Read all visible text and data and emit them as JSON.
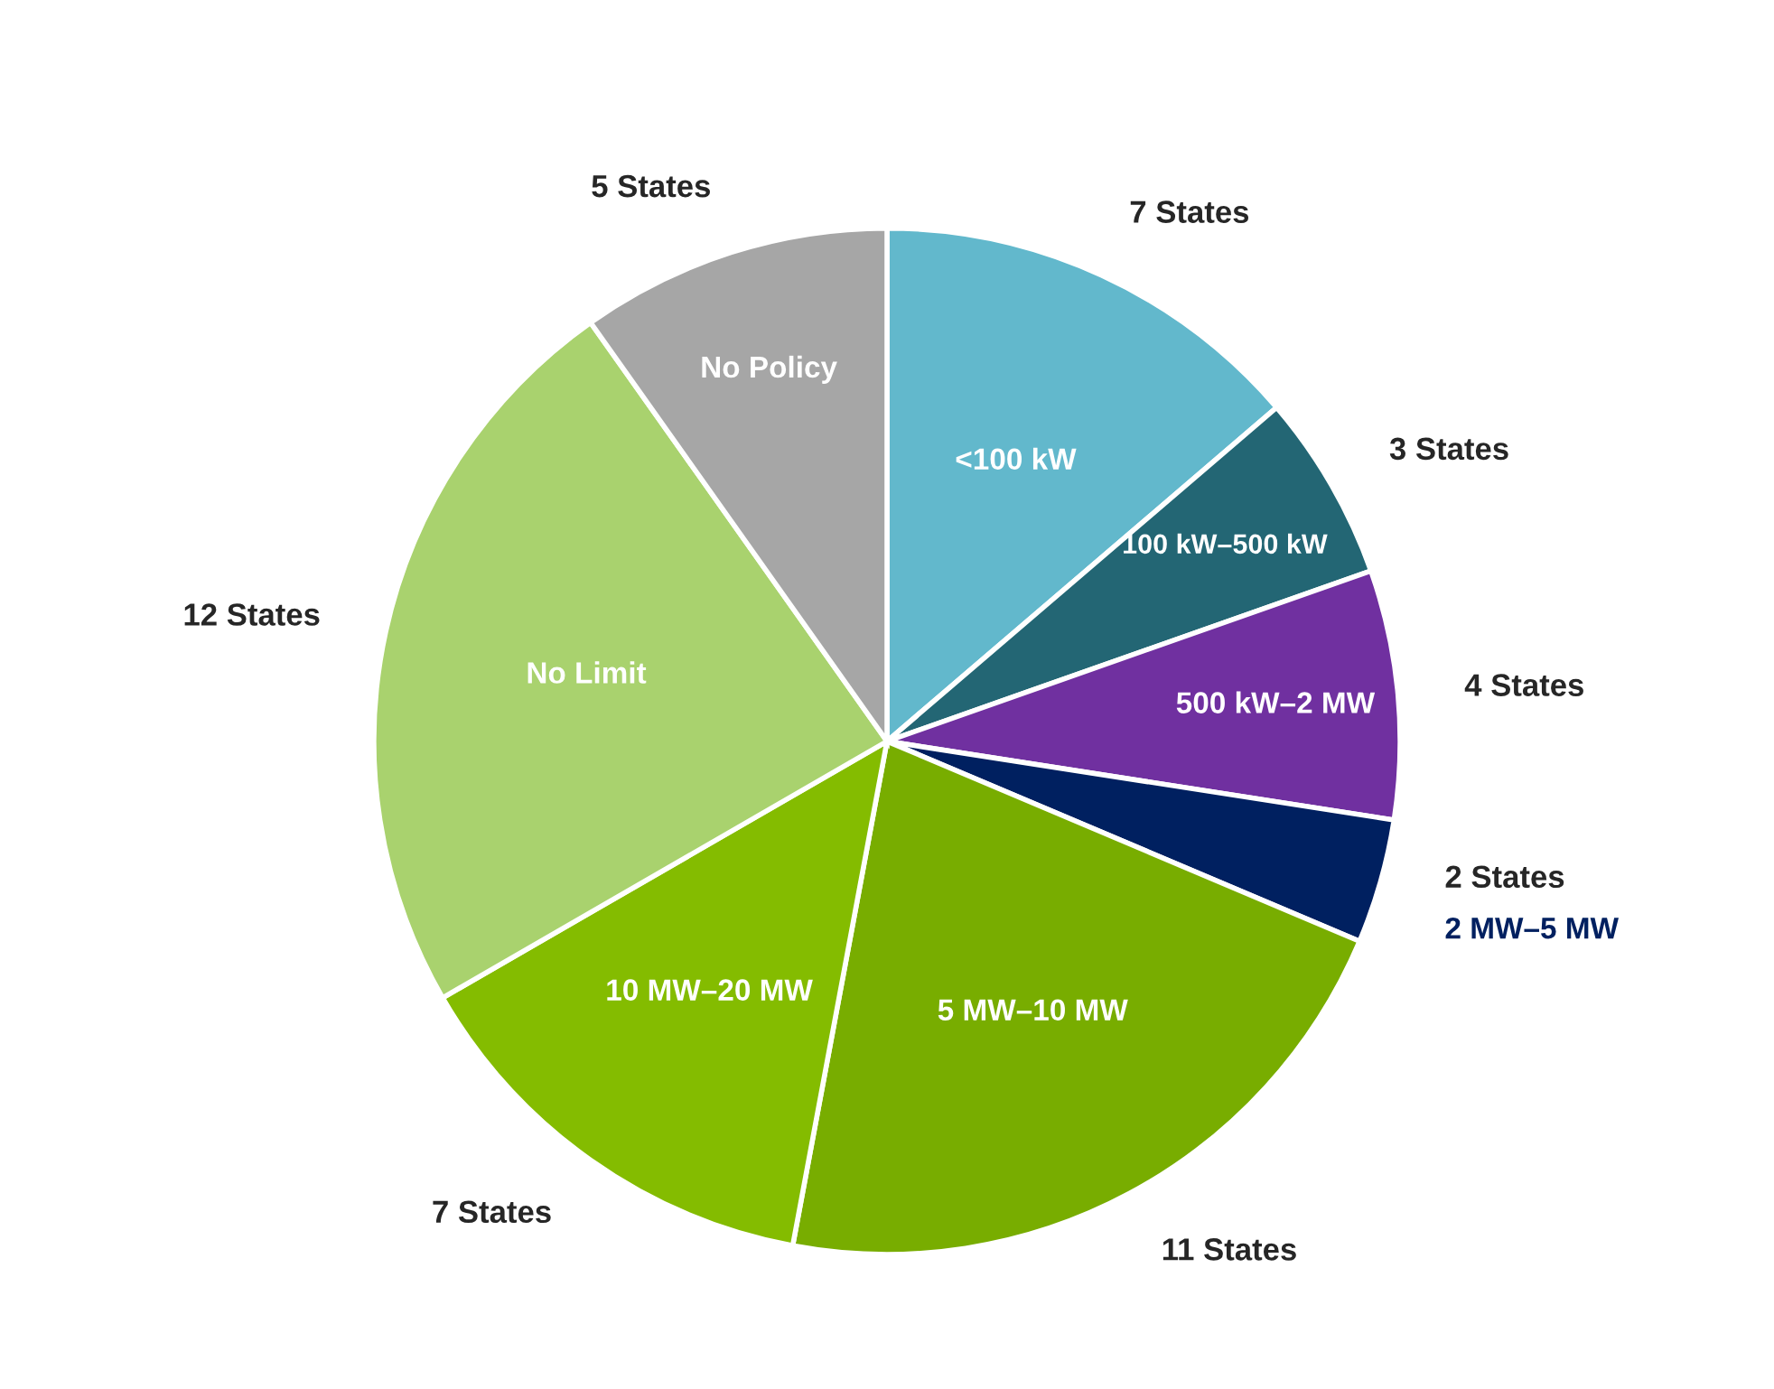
{
  "chart_data": {
    "type": "pie",
    "categories": [
      "<100 kW",
      "100 kW–500 kW",
      "500 kW–2 MW",
      "2 MW–5 MW",
      "5 MW–10 MW",
      "10 MW–20 MW",
      "No Limit",
      "No Policy"
    ],
    "values": [
      7,
      3,
      4,
      2,
      11,
      7,
      12,
      5
    ],
    "colors": [
      "#62b8cc",
      "#236674",
      "#7030a0",
      "#002060",
      "#78ad00",
      "#84bc00",
      "#a9d26e",
      "#a6a6a6"
    ],
    "value_labels": [
      "7 States",
      "3 States",
      "4 States",
      "2 States",
      "11 States",
      "7 States",
      "12 States",
      "5 States"
    ],
    "legend": false
  }
}
